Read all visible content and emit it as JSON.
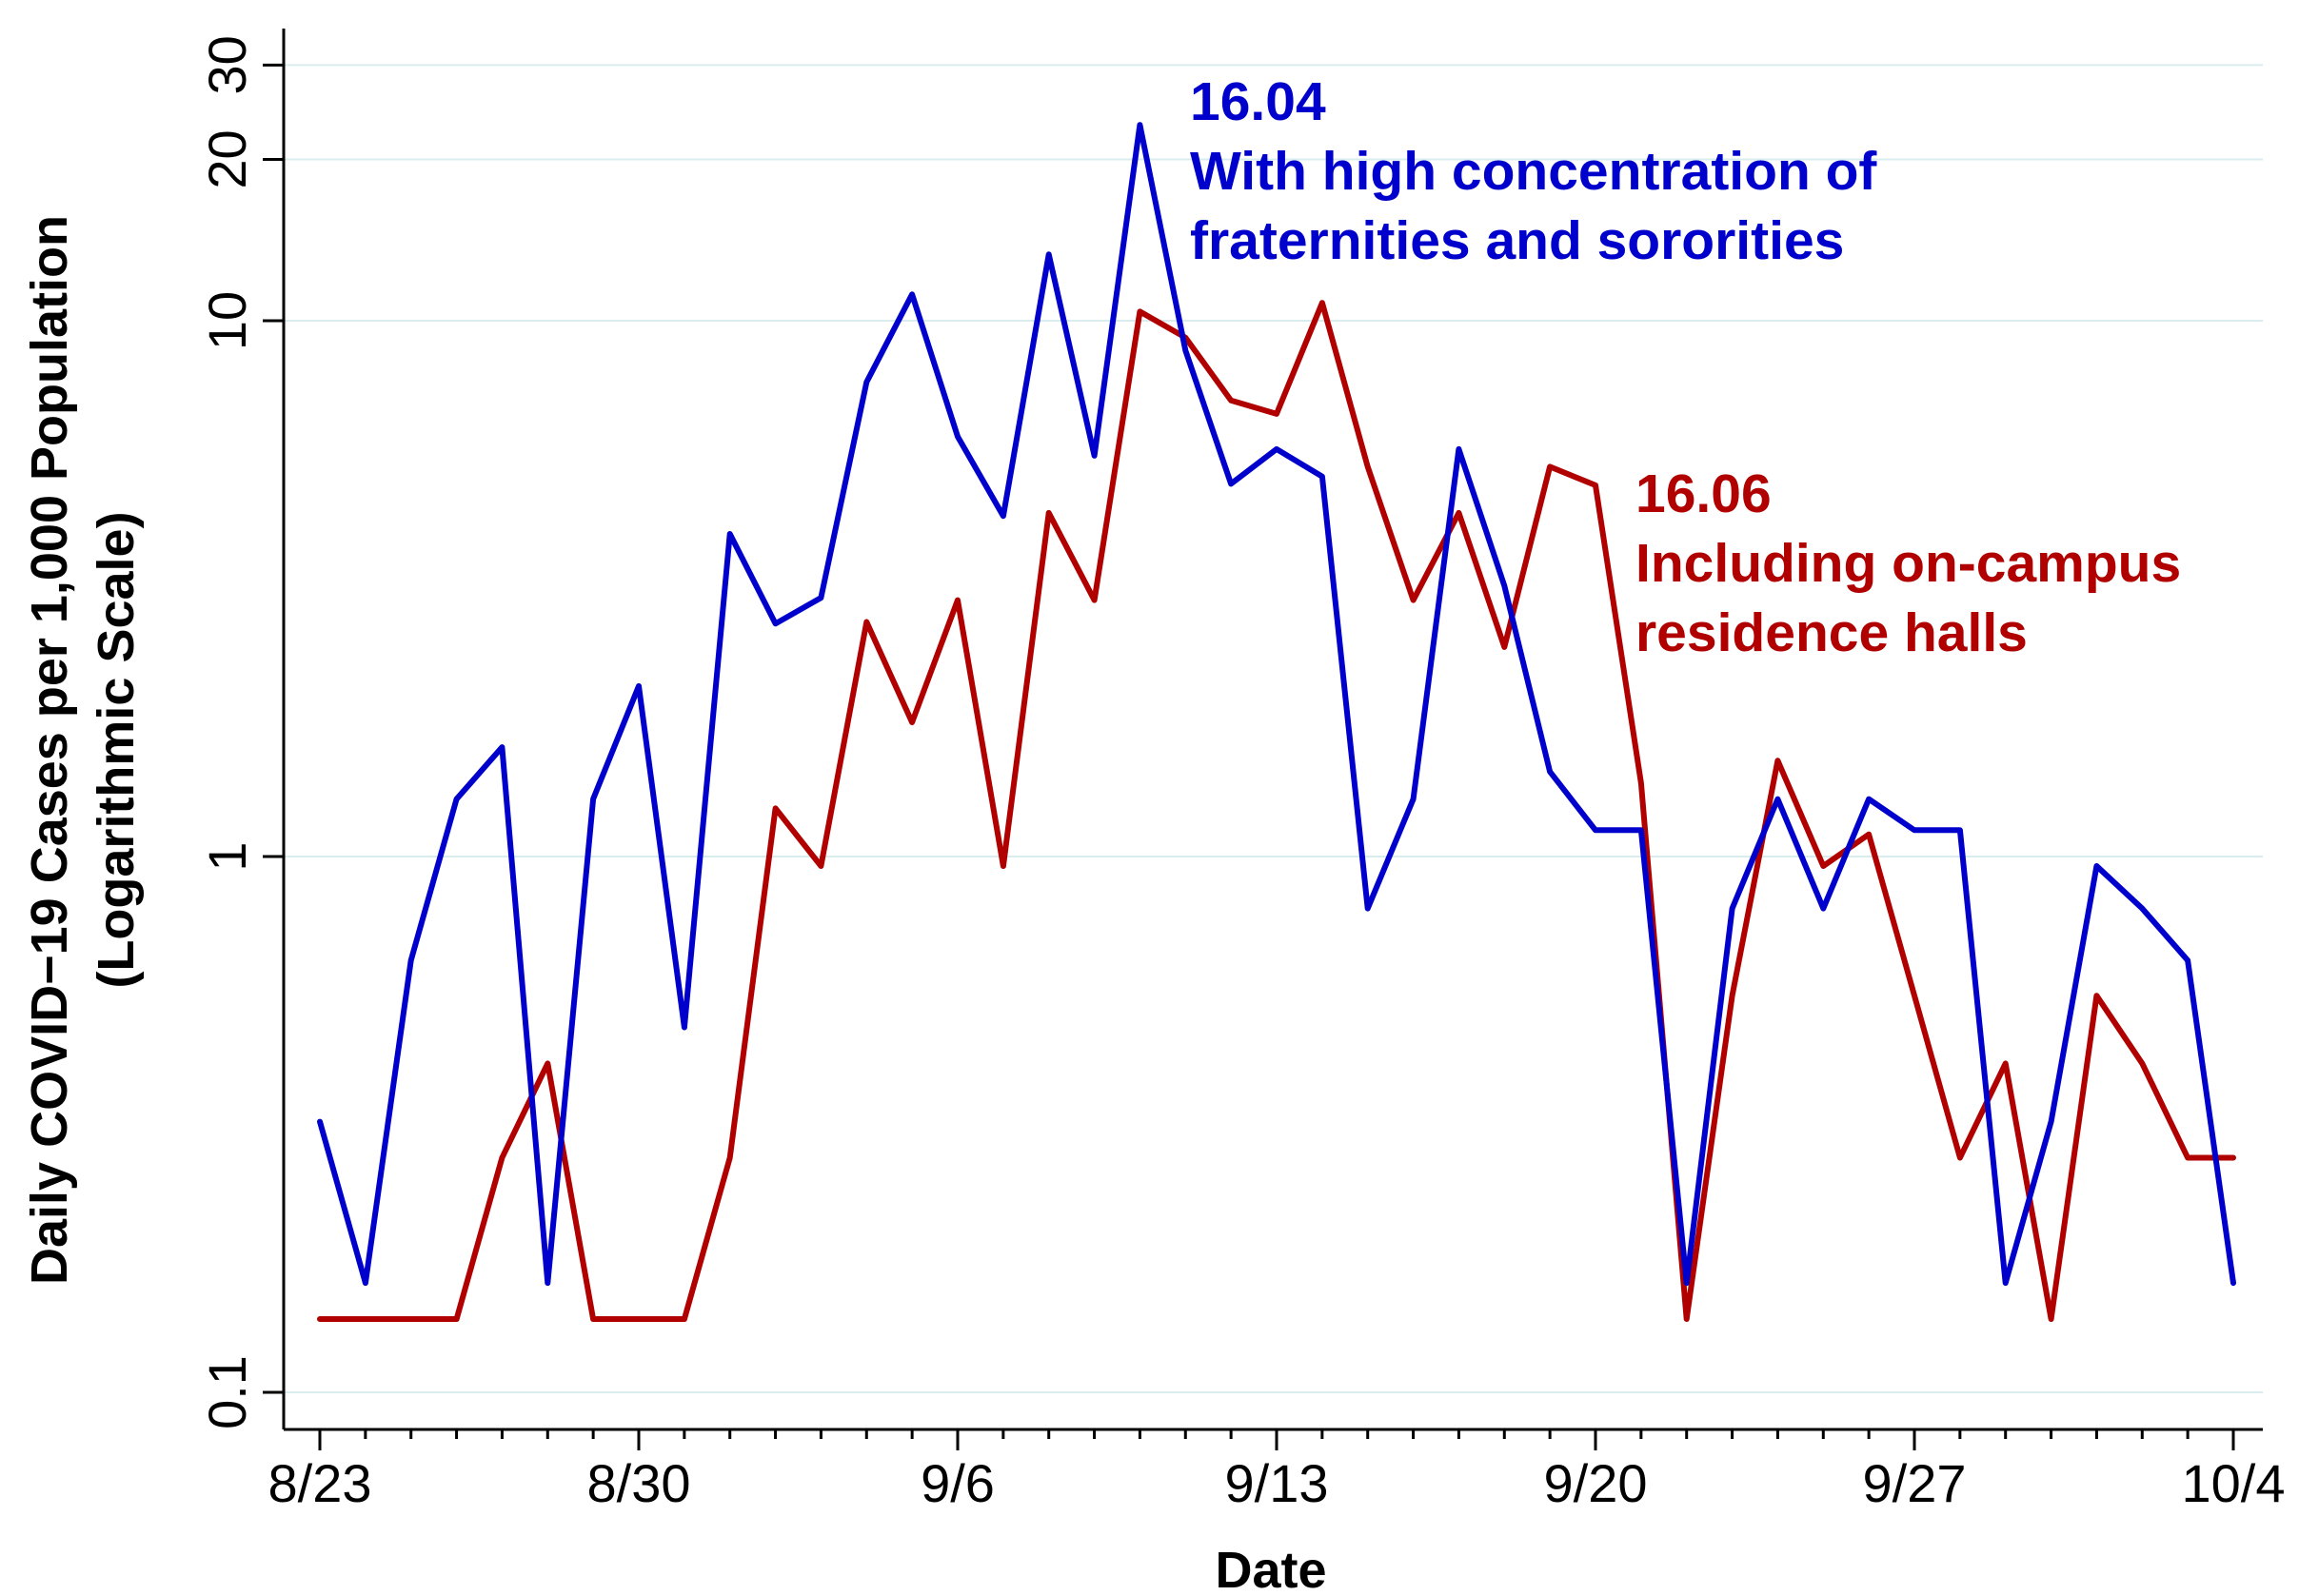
{
  "chart_data": {
    "type": "line",
    "title": "",
    "xlabel": "Date",
    "ylabel": "Daily COVID−19 Cases per 1,000 Population",
    "ylabel2": "(Logarithmic Scale)",
    "yscale": "log",
    "ylim": [
      0.085,
      36
    ],
    "y_ticks": [
      0.1,
      1,
      10,
      20,
      30
    ],
    "y_tick_labels": [
      "0.1",
      "1",
      "10",
      "20",
      "30"
    ],
    "grid": "horizontal",
    "x_ticks": [
      0,
      7,
      14,
      21,
      28,
      35,
      42
    ],
    "x_tick_labels": [
      "8/23",
      "8/30",
      "9/6",
      "9/13",
      "9/20",
      "9/27",
      "10/4"
    ],
    "x": [
      0,
      1,
      2,
      3,
      4,
      5,
      6,
      7,
      8,
      9,
      10,
      11,
      12,
      13,
      14,
      15,
      16,
      17,
      18,
      19,
      20,
      21,
      22,
      23,
      24,
      25,
      26,
      27,
      28,
      29,
      30,
      31,
      32,
      33,
      34,
      35,
      36,
      37,
      38,
      39,
      40,
      41,
      42
    ],
    "series": [
      {
        "name": "With high concentration of fraternities and sororities",
        "color": "#0000cc",
        "rate_label": "16.04",
        "label_line1": "With high concentration of",
        "label_line2": "fraternities and sororities",
        "values": [
          0.32,
          0.16,
          0.64,
          1.28,
          1.6,
          0.16,
          1.28,
          2.08,
          0.48,
          4.0,
          2.72,
          3.04,
          7.68,
          11.2,
          6.08,
          4.32,
          13.3,
          5.6,
          23.2,
          8.8,
          4.96,
          5.76,
          5.12,
          0.8,
          1.28,
          5.76,
          3.2,
          1.44,
          1.12,
          1.12,
          0.16,
          0.8,
          1.28,
          0.8,
          1.28,
          1.12,
          1.12,
          0.16,
          0.32,
          0.96,
          0.8,
          0.64,
          0.16
        ]
      },
      {
        "name": "Including on-campus residence halls",
        "color": "#b00000",
        "rate_label": "16.06",
        "label_line1": "Including on-campus",
        "label_line2": "residence halls",
        "values": [
          0.137,
          0.137,
          0.137,
          0.137,
          0.274,
          0.411,
          0.137,
          0.137,
          0.137,
          0.274,
          1.23,
          0.96,
          2.74,
          1.78,
          3.01,
          0.96,
          4.38,
          3.01,
          10.4,
          9.3,
          7.1,
          6.7,
          10.8,
          5.34,
          3.01,
          4.38,
          2.46,
          5.34,
          4.93,
          1.37,
          0.137,
          0.55,
          1.51,
          0.96,
          1.1,
          0.55,
          0.274,
          0.411,
          0.137,
          0.55,
          0.411,
          0.274,
          0.274
        ]
      }
    ]
  }
}
